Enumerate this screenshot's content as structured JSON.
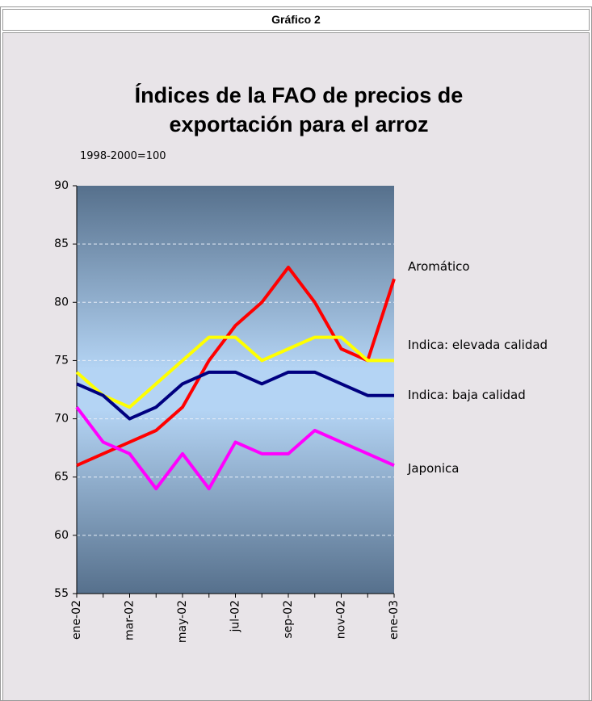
{
  "header": "Gráfico 2",
  "chart_data": {
    "type": "line",
    "title": "Índices de la FAO de precios de exportación para el arroz",
    "subtitle": "1998-2000=100",
    "categories": [
      "ene-02",
      null,
      "mar-02",
      null,
      "may-02",
      null,
      "jul-02",
      null,
      "sep-02",
      null,
      "nov-02",
      null,
      "ene-03"
    ],
    "series": [
      {
        "name": "Aromático",
        "color": "#ff0000",
        "values": [
          66,
          67,
          68,
          69,
          71,
          75,
          78,
          80,
          83,
          80,
          76,
          75,
          82
        ]
      },
      {
        "name": "Indica: elevada calidad",
        "color": "#ffff00",
        "values": [
          74,
          72,
          71,
          73,
          75,
          77,
          77,
          75,
          76,
          77,
          77,
          75,
          75
        ]
      },
      {
        "name": "Indica: baja calidad",
        "color": "#000080",
        "values": [
          73,
          72,
          70,
          71,
          73,
          74,
          74,
          73,
          74,
          74,
          73,
          72,
          72
        ]
      },
      {
        "name": "Japonica",
        "color": "#ff00ff",
        "values": [
          71,
          68,
          67,
          64,
          67,
          64,
          68,
          67,
          67,
          69,
          68,
          67,
          66
        ]
      }
    ],
    "ylim": [
      55,
      90
    ],
    "yticks": [
      55,
      60,
      65,
      70,
      75,
      80,
      85,
      90
    ],
    "grid": true
  }
}
